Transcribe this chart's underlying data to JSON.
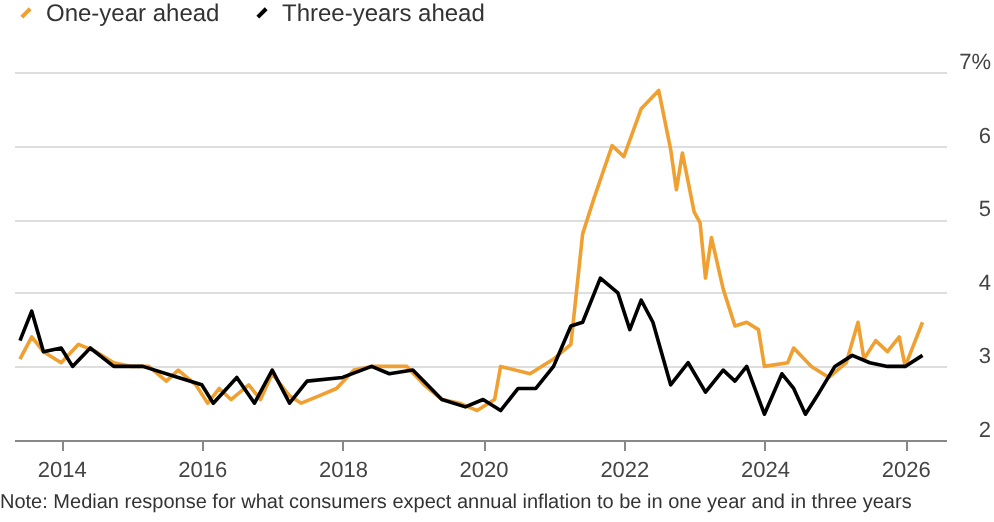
{
  "chart_data": {
    "type": "line",
    "annotations": [
      "Note: Median response for what consumers expect annual inflation to be in one year and in three years"
    ],
    "xlim": [
      "2013-05",
      "2026-08"
    ],
    "xticks": [
      "2014",
      "2016",
      "2018",
      "2020",
      "2022",
      "2024",
      "2026"
    ],
    "ylim": [
      2,
      7
    ],
    "yticks": [
      2,
      3,
      4,
      5,
      6,
      {
        "value": 7,
        "label": "7%"
      }
    ],
    "grid": "y",
    "legend": "top left",
    "marker": "none",
    "line_style": "solid",
    "series": [
      {
        "name": "One-year ahead",
        "color": "#f0a030",
        "x": [
          "2013-06",
          "2013-08",
          "2013-10",
          "2014-01",
          "2014-04",
          "2014-07",
          "2014-10",
          "2015-01",
          "2015-04",
          "2015-07",
          "2015-09",
          "2015-12",
          "2016-02",
          "2016-04",
          "2016-06",
          "2016-09",
          "2016-11",
          "2017-01",
          "2017-04",
          "2017-06",
          "2017-09",
          "2017-12",
          "2018-03",
          "2018-06",
          "2018-09",
          "2018-12",
          "2019-03",
          "2019-06",
          "2019-09",
          "2019-12",
          "2020-03",
          "2020-04",
          "2020-09",
          "2021-01",
          "2021-04",
          "2021-06",
          "2021-08",
          "2021-11",
          "2022-01",
          "2022-04",
          "2022-07",
          "2022-09",
          "2022-10",
          "2022-11",
          "2023-01",
          "2023-02",
          "2023-03",
          "2023-04",
          "2023-06",
          "2023-08",
          "2023-10",
          "2023-12",
          "2024-01",
          "2024-05",
          "2024-06",
          "2024-09",
          "2024-12",
          "2025-03",
          "2025-05",
          "2025-06",
          "2025-08",
          "2025-10",
          "2025-12",
          "2026-01",
          "2026-04"
        ],
        "values": [
          3.1,
          3.4,
          3.2,
          3.05,
          3.3,
          3.2,
          3.05,
          3.0,
          3.0,
          2.8,
          2.95,
          2.75,
          2.5,
          2.7,
          2.55,
          2.75,
          2.55,
          2.9,
          2.6,
          2.5,
          2.6,
          2.7,
          2.95,
          3.0,
          3.0,
          3.0,
          2.75,
          2.55,
          2.5,
          2.4,
          2.55,
          3.0,
          2.9,
          3.1,
          3.3,
          4.8,
          5.3,
          6.0,
          5.85,
          6.5,
          6.75,
          5.95,
          5.4,
          5.9,
          5.1,
          4.95,
          4.2,
          4.75,
          4.05,
          3.55,
          3.6,
          3.5,
          3.0,
          3.05,
          3.25,
          3.0,
          2.85,
          3.05,
          3.6,
          3.1,
          3.35,
          3.2,
          3.4,
          3.0,
          3.6
        ]
      },
      {
        "name": "Three-years ahead",
        "color": "#000000",
        "x": [
          "2013-06",
          "2013-08",
          "2013-10",
          "2014-01",
          "2014-03",
          "2014-06",
          "2014-10",
          "2015-03",
          "2015-09",
          "2016-01",
          "2016-03",
          "2016-07",
          "2016-10",
          "2017-01",
          "2017-04",
          "2017-07",
          "2018-01",
          "2018-06",
          "2018-09",
          "2019-01",
          "2019-06",
          "2019-10",
          "2020-01",
          "2020-04",
          "2020-07",
          "2020-10",
          "2021-01",
          "2021-04",
          "2021-06",
          "2021-09",
          "2021-12",
          "2022-02",
          "2022-04",
          "2022-06",
          "2022-09",
          "2022-12",
          "2023-03",
          "2023-06",
          "2023-08",
          "2023-10",
          "2024-01",
          "2024-04",
          "2024-06",
          "2024-08",
          "2024-10",
          "2025-01",
          "2025-04",
          "2025-07",
          "2025-10",
          "2026-01",
          "2026-04"
        ],
        "values": [
          3.35,
          3.75,
          3.2,
          3.25,
          3.0,
          3.25,
          3.0,
          3.0,
          2.85,
          2.75,
          2.5,
          2.85,
          2.5,
          2.95,
          2.5,
          2.8,
          2.85,
          3.0,
          2.9,
          2.95,
          2.55,
          2.45,
          2.55,
          2.4,
          2.7,
          2.7,
          3.0,
          3.55,
          3.6,
          4.2,
          4.0,
          3.5,
          3.9,
          3.6,
          2.75,
          3.05,
          2.65,
          2.95,
          2.8,
          3.0,
          2.35,
          2.9,
          2.7,
          2.35,
          2.6,
          3.0,
          3.15,
          3.05,
          3.0,
          3.0,
          3.15
        ]
      }
    ]
  }
}
